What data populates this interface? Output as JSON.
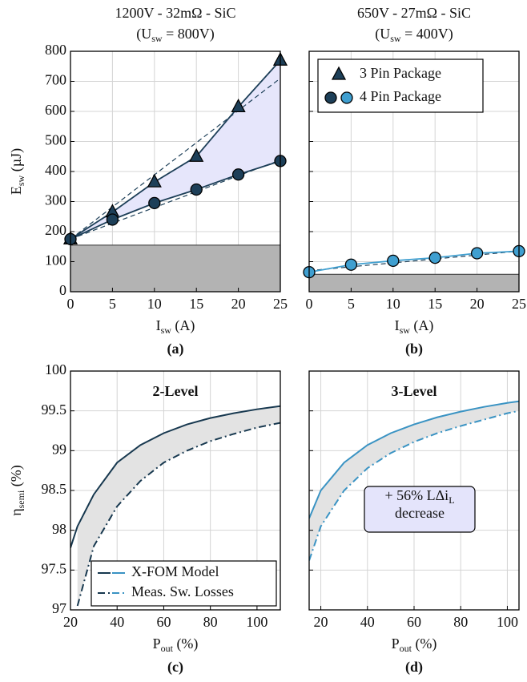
{
  "chart_data": [
    {
      "type": "line",
      "label": "(a)",
      "title": "1200V - 32mΩ - SiC",
      "subtitle": [
        "(U",
        "sw",
        " = 800V)"
      ],
      "xlabel": [
        "I",
        "sw",
        " (A)"
      ],
      "ylabel": [
        "E",
        "sw",
        " (µJ)"
      ],
      "x": [
        0,
        5,
        10,
        15,
        20,
        25
      ],
      "series": [
        {
          "name": "3 Pin Package",
          "color": "#1d3f58",
          "marker": "triangle",
          "values": [
            175,
            265,
            365,
            450,
            615,
            770
          ]
        },
        {
          "name": "4 Pin Package",
          "color": "#1d3f58",
          "marker": "circle",
          "values": [
            175,
            240,
            295,
            340,
            390,
            435
          ]
        }
      ],
      "fits": [
        {
          "color": "#1d3f58",
          "values": [
            175,
            282,
            389,
            496,
            603,
            710
          ]
        },
        {
          "color": "#1d3f58",
          "values": [
            175,
            228,
            280,
            333,
            386,
            438
          ]
        }
      ],
      "fill_between": "#e6e6fb",
      "shaded_below": 155,
      "xlim": [
        0,
        25
      ],
      "ylim": [
        0,
        800
      ],
      "xticks": [
        0,
        5,
        10,
        15,
        20,
        25
      ],
      "yticks": [
        0,
        100,
        200,
        300,
        400,
        500,
        600,
        700,
        800
      ],
      "ytick_labels": true,
      "grid": true
    },
    {
      "type": "line",
      "label": "(b)",
      "title": "650V - 27mΩ - SiC",
      "subtitle": [
        "(U",
        "sw",
        " = 400V)"
      ],
      "xlabel": [
        "I",
        "sw",
        " (A)"
      ],
      "x": [
        0,
        5,
        10,
        15,
        20,
        25
      ],
      "series": [
        {
          "color": "#3f9fd0",
          "marker": "circle",
          "values": [
            65,
            90,
            103,
            113,
            128,
            135
          ]
        }
      ],
      "fits": [
        {
          "color": "#1d3f58",
          "values": [
            70,
            83,
            96,
            109,
            122,
            135
          ]
        }
      ],
      "shaded_below": 58,
      "legend": "upper left",
      "xlim": [
        0,
        25
      ],
      "ylim": [
        0,
        800
      ],
      "xticks": [
        0,
        5,
        10,
        15,
        20,
        25
      ],
      "yticks": [
        0,
        100,
        200,
        300,
        400,
        500,
        600,
        700,
        800
      ],
      "ytick_labels": false,
      "grid": true
    },
    {
      "type": "line",
      "label": "(c)",
      "annotations": [
        "2-Level"
      ],
      "xlabel": [
        "P",
        "out",
        " (%)"
      ],
      "ylabel": [
        "η",
        "semi",
        " (%)"
      ],
      "x": [
        20,
        23,
        30,
        40,
        50,
        60,
        70,
        80,
        90,
        100,
        110
      ],
      "series": [
        {
          "name": "X-FOM Model",
          "color": "#17384f",
          "dash": "solid",
          "values": [
            97.78,
            98.05,
            98.45,
            98.85,
            99.07,
            99.22,
            99.33,
            99.41,
            99.47,
            99.52,
            99.56
          ]
        },
        {
          "name": "Meas. Sw. Losses",
          "color": "#17384f",
          "dash": "dashdot",
          "values": [
            null,
            97.05,
            97.8,
            98.3,
            98.62,
            98.85,
            99.0,
            99.12,
            99.21,
            99.29,
            99.35
          ]
        }
      ],
      "fill_between": "#e3e3e3",
      "legend": "lower left",
      "xlim": [
        20,
        110
      ],
      "ylim": [
        97,
        100
      ],
      "xticks": [
        20,
        40,
        60,
        80,
        100
      ],
      "yticks": [
        97,
        97.5,
        98,
        98.5,
        99,
        99.5,
        100
      ],
      "ytick_labels": true,
      "grid": true
    },
    {
      "type": "line",
      "label": "(d)",
      "annotations": [
        "3-Level",
        [
          "+ 56% LΔi",
          "L"
        ],
        "decrease"
      ],
      "xlabel": [
        "P",
        "out",
        " (%)"
      ],
      "x": [
        15,
        20,
        30,
        40,
        50,
        60,
        70,
        80,
        90,
        100,
        105
      ],
      "series": [
        {
          "color": "#3a93c3",
          "dash": "solid",
          "values": [
            98.15,
            98.5,
            98.85,
            99.07,
            99.22,
            99.33,
            99.42,
            99.49,
            99.55,
            99.6,
            99.62
          ]
        },
        {
          "color": "#3a93c3",
          "dash": "dashdot",
          "values": [
            97.62,
            98.05,
            98.5,
            98.78,
            98.97,
            99.11,
            99.22,
            99.31,
            99.39,
            99.47,
            99.5
          ]
        }
      ],
      "fill_between": "#e3e3e3",
      "xlim": [
        15,
        105
      ],
      "ylim": [
        97,
        100
      ],
      "xticks": [
        20,
        40,
        60,
        80,
        100
      ],
      "yticks": [
        97,
        97.5,
        98,
        98.5,
        99,
        99.5,
        100
      ],
      "ytick_labels": false,
      "grid": true
    }
  ]
}
